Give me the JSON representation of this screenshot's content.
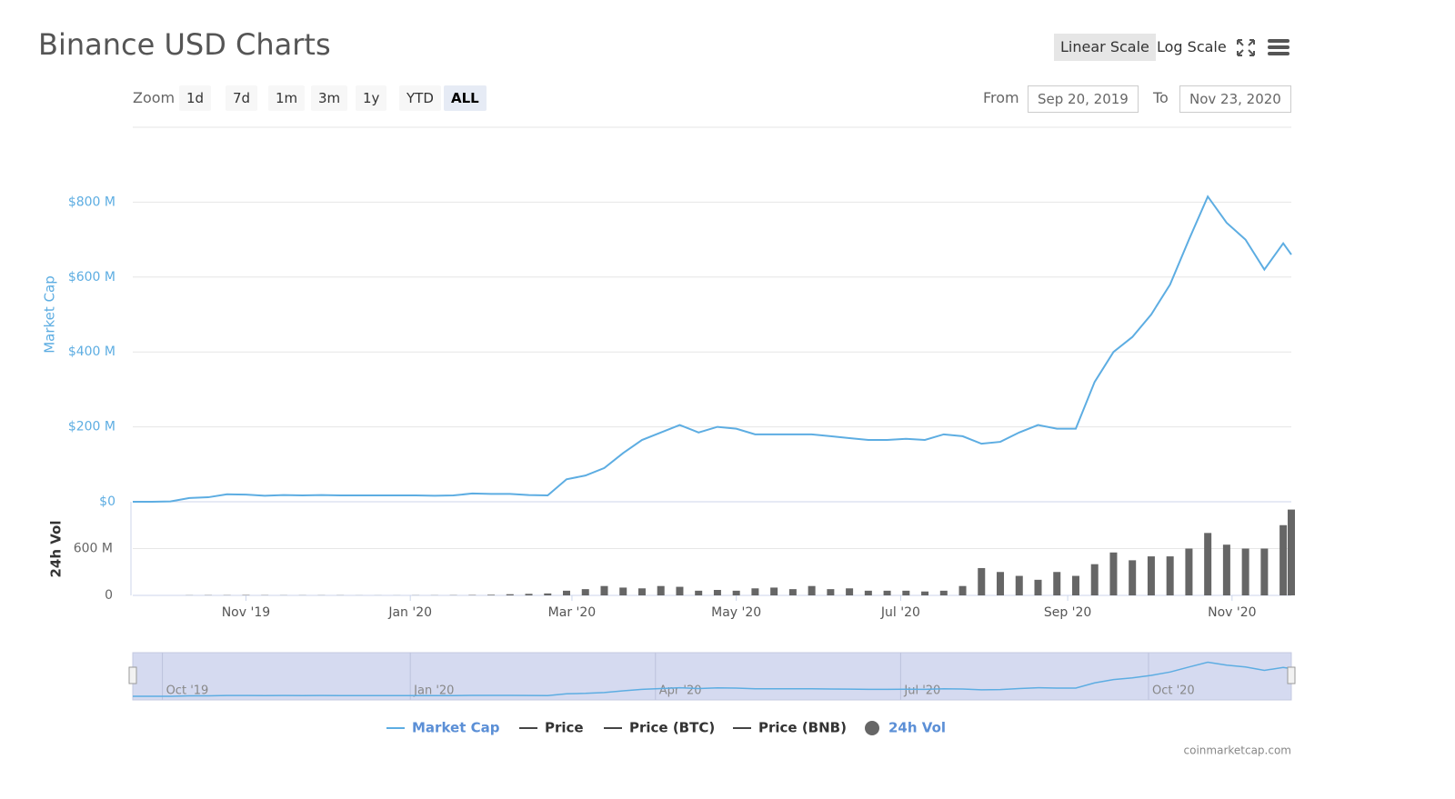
{
  "page": {
    "title": "Binance USD Charts",
    "linear_scale": "Linear Scale",
    "log_scale": "Log Scale",
    "zoom_label": "Zoom",
    "zoom_buttons": [
      "1d",
      "7d",
      "1m",
      "3m",
      "1y",
      "YTD",
      "ALL"
    ],
    "from_label": "From",
    "from_date": "Sep 20, 2019",
    "to_label": "To",
    "to_date": "Nov 23, 2020",
    "credit": "coinmarketcap.com"
  },
  "chart_data": {
    "type": "line",
    "ylabel": "Market Cap",
    "y2label": "24h Vol",
    "x": [
      "2019-09-20",
      "2019-09-27",
      "2019-10-04",
      "2019-10-11",
      "2019-10-18",
      "2019-10-25",
      "2019-11-01",
      "2019-11-08",
      "2019-11-15",
      "2019-11-22",
      "2019-11-29",
      "2019-12-06",
      "2019-12-13",
      "2019-12-20",
      "2019-12-27",
      "2020-01-03",
      "2020-01-10",
      "2020-01-17",
      "2020-01-24",
      "2020-01-31",
      "2020-02-07",
      "2020-02-14",
      "2020-02-21",
      "2020-02-28",
      "2020-03-06",
      "2020-03-13",
      "2020-03-20",
      "2020-03-27",
      "2020-04-03",
      "2020-04-10",
      "2020-04-17",
      "2020-04-24",
      "2020-05-01",
      "2020-05-08",
      "2020-05-15",
      "2020-05-22",
      "2020-05-29",
      "2020-06-05",
      "2020-06-12",
      "2020-06-19",
      "2020-06-26",
      "2020-07-03",
      "2020-07-10",
      "2020-07-17",
      "2020-07-24",
      "2020-07-31",
      "2020-08-07",
      "2020-08-14",
      "2020-08-21",
      "2020-08-28",
      "2020-09-04",
      "2020-09-11",
      "2020-09-18",
      "2020-09-25",
      "2020-10-02",
      "2020-10-09",
      "2020-10-16",
      "2020-10-23",
      "2020-10-30",
      "2020-11-06",
      "2020-11-13",
      "2020-11-20",
      "2020-11-23"
    ],
    "xlim": [
      "2019-09-20",
      "2020-11-23"
    ],
    "xticks": [
      {
        "value": "2019-11-01",
        "label": "Nov '19"
      },
      {
        "value": "2020-01-01",
        "label": "Jan '20"
      },
      {
        "value": "2020-03-01",
        "label": "Mar '20"
      },
      {
        "value": "2020-05-01",
        "label": "May '20"
      },
      {
        "value": "2020-07-01",
        "label": "Jul '20"
      },
      {
        "value": "2020-09-01",
        "label": "Sep '20"
      },
      {
        "value": "2020-11-01",
        "label": "Nov '20"
      }
    ],
    "ylim": [
      0,
      1000
    ],
    "yticks": [
      {
        "value": 0,
        "label": "$0"
      },
      {
        "value": 200,
        "label": "$200 M"
      },
      {
        "value": 400,
        "label": "$400 M"
      },
      {
        "value": 600,
        "label": "$600 M"
      },
      {
        "value": 800,
        "label": "$800 M"
      }
    ],
    "y2lim": [
      0,
      1200
    ],
    "y2ticks": [
      0,
      {
        "value": 600,
        "label": "600 M"
      }
    ],
    "navigator_xticks": [
      {
        "value": "2019-10-01",
        "label": "Oct '19"
      },
      {
        "value": "2020-01-01",
        "label": "Jan '20"
      },
      {
        "value": "2020-04-01",
        "label": "Apr '20"
      },
      {
        "value": "2020-07-01",
        "label": "Jul '20"
      },
      {
        "value": "2020-10-01",
        "label": "Oct '20"
      }
    ],
    "grid": true,
    "series": [
      {
        "name": "Market Cap",
        "color": "#5dade2",
        "axis": "y",
        "values": [
          0,
          0,
          1,
          10,
          12,
          20,
          19,
          16,
          18,
          17,
          18,
          17,
          17,
          17,
          17,
          17,
          16,
          17,
          22,
          21,
          21,
          18,
          17,
          60,
          70,
          90,
          130,
          165,
          185,
          205,
          185,
          200,
          195,
          180,
          180,
          180,
          180,
          175,
          170,
          165,
          165,
          168,
          165,
          180,
          175,
          155,
          160,
          185,
          205,
          195,
          195,
          320,
          400,
          440,
          500,
          580,
          700,
          815,
          745,
          700,
          620,
          690,
          660
        ]
      },
      {
        "name": "24h Vol",
        "color": "#666666",
        "axis": "y2",
        "values": [
          0,
          0,
          0,
          2,
          3,
          3,
          5,
          3,
          2,
          2,
          2,
          2,
          1,
          1,
          1,
          2,
          2,
          3,
          5,
          8,
          15,
          20,
          25,
          60,
          80,
          120,
          100,
          90,
          120,
          110,
          60,
          70,
          60,
          90,
          100,
          80,
          120,
          80,
          90,
          60,
          60,
          60,
          50,
          60,
          120,
          350,
          300,
          250,
          200,
          300,
          250,
          400,
          550,
          450,
          500,
          500,
          600,
          800,
          650,
          600,
          600,
          900,
          1100
        ]
      }
    ],
    "legend_extra": [
      {
        "name": "Price",
        "color": "#444444"
      },
      {
        "name": "Price (BTC)",
        "color": "#444444"
      },
      {
        "name": "Price (BNB)",
        "color": "#444444"
      }
    ]
  }
}
